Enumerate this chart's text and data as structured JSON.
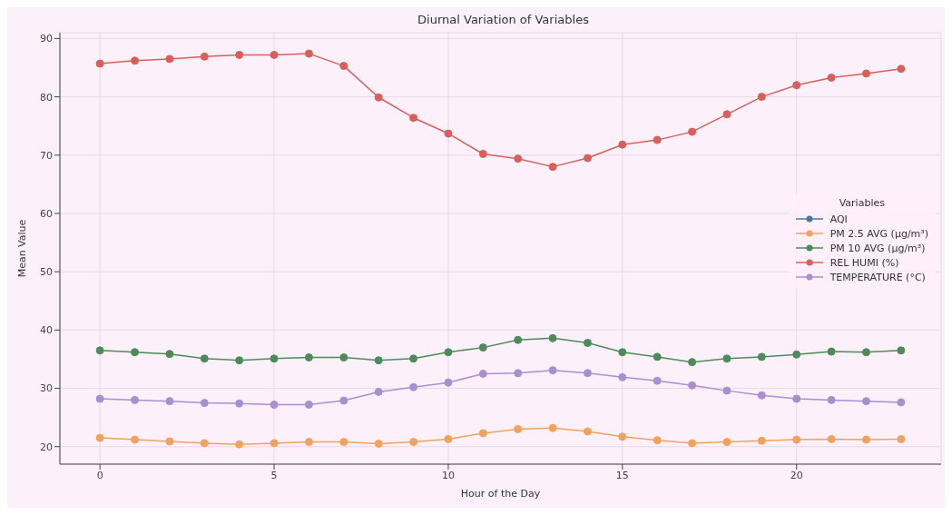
{
  "chart_data": {
    "type": "line",
    "title": "Diurnal Variation of Variables",
    "xlabel": "Hour of the Day",
    "ylabel": "Mean Value",
    "legend_title": "Variables",
    "x": [
      0,
      1,
      2,
      3,
      4,
      5,
      6,
      7,
      8,
      9,
      10,
      11,
      12,
      13,
      14,
      15,
      16,
      17,
      18,
      19,
      20,
      21,
      22,
      23
    ],
    "series": [
      {
        "name": "AQI",
        "color": "#4a7a96",
        "values": [
          null,
          null,
          null,
          null,
          null,
          null,
          null,
          null,
          null,
          null,
          null,
          null,
          null,
          null,
          null,
          null,
          null,
          null,
          null,
          null,
          null,
          null,
          null,
          null
        ]
      },
      {
        "name": "PM 2.5 AVG (µg/m³)",
        "color": "#f2a25e",
        "values": [
          21.5,
          21.2,
          20.9,
          20.6,
          20.4,
          20.6,
          20.8,
          20.8,
          20.5,
          20.8,
          21.3,
          22.3,
          23,
          23.2,
          22.6,
          21.7,
          21.1,
          20.6,
          20.8,
          21,
          21.2,
          21.3,
          21.2,
          21.3
        ]
      },
      {
        "name": "PM 10 AVG (µg/m³)",
        "color": "#4f8a5a",
        "values": [
          36.5,
          36.2,
          35.9,
          35.1,
          34.8,
          35.1,
          35.3,
          35.3,
          34.8,
          35.1,
          36.2,
          37,
          38.3,
          38.6,
          37.8,
          36.2,
          35.4,
          34.5,
          35.1,
          35.4,
          35.8,
          36.3,
          36.2,
          36.5
        ]
      },
      {
        "name": "REL HUMI (%)",
        "color": "#d9605a",
        "values": [
          85.7,
          86.2,
          86.5,
          86.9,
          87.2,
          87.2,
          87.4,
          85.3,
          79.9,
          76.4,
          73.7,
          70.2,
          69.4,
          68,
          69.5,
          71.8,
          72.6,
          74,
          77,
          80,
          82,
          83.3,
          84,
          84.8
        ]
      },
      {
        "name": "TEMPERATURE (°C)",
        "color": "#a98fd0",
        "values": [
          28.2,
          28,
          27.8,
          27.5,
          27.4,
          27.2,
          27.2,
          27.9,
          29.4,
          30.2,
          31,
          32.5,
          32.6,
          33.1,
          32.6,
          31.9,
          31.3,
          30.5,
          29.6,
          28.8,
          28.2,
          28,
          27.8,
          27.6
        ]
      }
    ],
    "xlim": [
      -1.15,
      24.15
    ],
    "xticks": [
      0,
      5,
      10,
      15,
      20
    ],
    "ylim": [
      17,
      91
    ],
    "yticks": [
      20,
      30,
      40,
      50,
      60,
      70,
      80,
      90
    ],
    "grid": true,
    "legend": "right",
    "marker": "circle",
    "line_style": "solid"
  }
}
